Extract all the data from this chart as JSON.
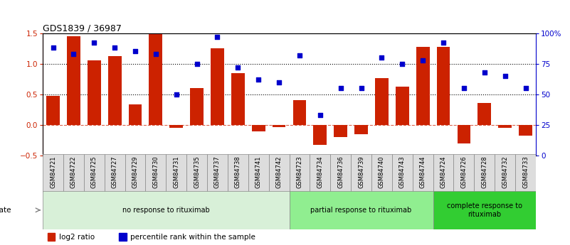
{
  "title": "GDS1839 / 36987",
  "samples": [
    "GSM84721",
    "GSM84722",
    "GSM84725",
    "GSM84727",
    "GSM84729",
    "GSM84730",
    "GSM84731",
    "GSM84735",
    "GSM84737",
    "GSM84738",
    "GSM84741",
    "GSM84742",
    "GSM84723",
    "GSM84734",
    "GSM84736",
    "GSM84739",
    "GSM84740",
    "GSM84743",
    "GSM84744",
    "GSM84724",
    "GSM84726",
    "GSM84728",
    "GSM84732",
    "GSM84733"
  ],
  "log2_ratio": [
    0.47,
    1.45,
    1.06,
    1.12,
    0.33,
    1.49,
    -0.05,
    0.6,
    1.25,
    0.85,
    -0.1,
    -0.03,
    0.4,
    -0.33,
    -0.2,
    -0.15,
    0.77,
    0.62,
    1.27,
    1.27,
    -0.3,
    0.36,
    -0.05,
    -0.17
  ],
  "percentile_rank": [
    88,
    83,
    92,
    88,
    85,
    83,
    50,
    75,
    97,
    72,
    62,
    60,
    82,
    33,
    55,
    55,
    80,
    75,
    78,
    92,
    55,
    68,
    65,
    55
  ],
  "groups": [
    {
      "label": "no response to rituximab",
      "start": 0,
      "end": 12,
      "color": "#d8f0d8"
    },
    {
      "label": "partial response to rituximab",
      "start": 12,
      "end": 19,
      "color": "#90ee90"
    },
    {
      "label": "complete response to\nrituximab",
      "start": 19,
      "end": 24,
      "color": "#32cd32"
    }
  ],
  "bar_color": "#cc2200",
  "dot_color": "#0000cc",
  "ylim_left": [
    -0.5,
    1.5
  ],
  "ylim_right": [
    0,
    100
  ],
  "yticks_left": [
    -0.5,
    0.0,
    0.5,
    1.0,
    1.5
  ],
  "yticks_right": [
    0,
    25,
    50,
    75,
    100
  ],
  "hlines": [
    0.5,
    1.0
  ],
  "zero_line_color": "#cc2200",
  "background_color": "white"
}
